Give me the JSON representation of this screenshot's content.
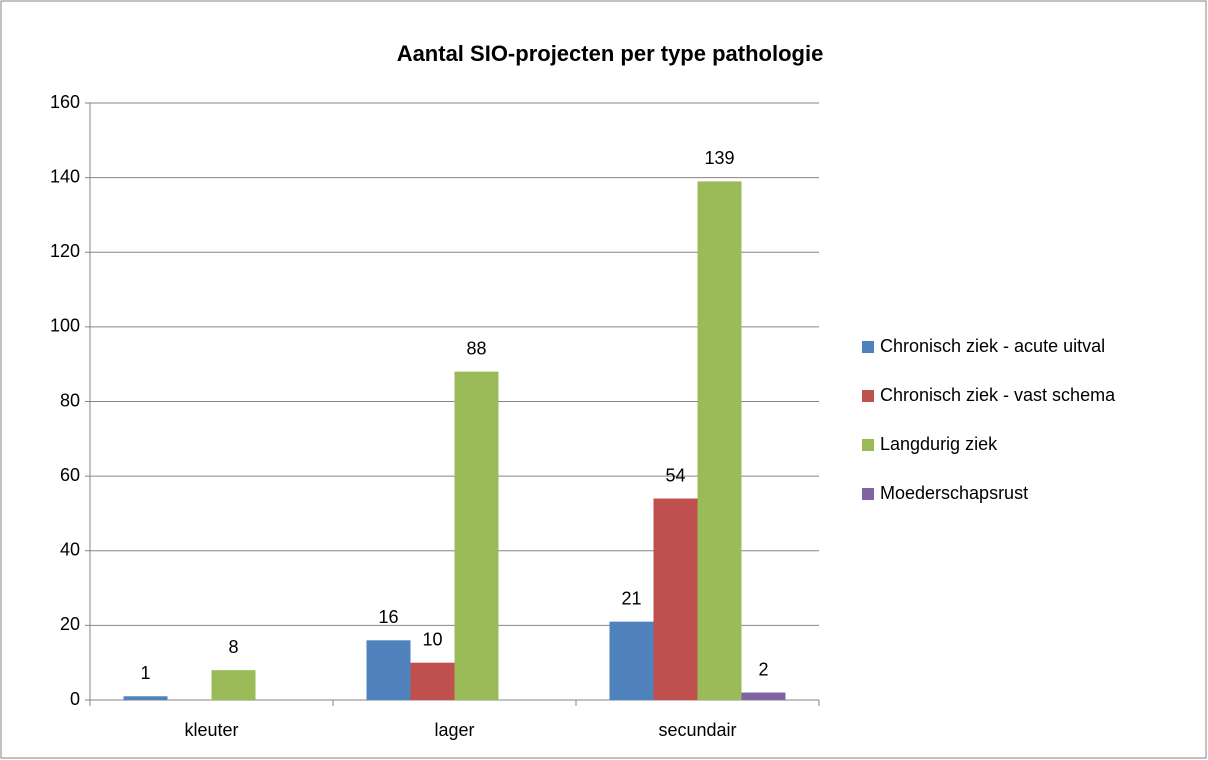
{
  "chart_data": {
    "type": "bar",
    "title": "Aantal SIO-projecten per type pathologie",
    "categories": [
      "kleuter",
      "lager",
      "secundair"
    ],
    "series": [
      {
        "name": "Chronisch ziek - acute uitval",
        "color": "#4f81bd",
        "values": [
          1,
          16,
          21
        ]
      },
      {
        "name": "Chronisch ziek - vast schema",
        "color": "#c0504d",
        "values": [
          null,
          10,
          54
        ]
      },
      {
        "name": "Langdurig ziek",
        "color": "#9bbb59",
        "values": [
          8,
          88,
          139
        ]
      },
      {
        "name": "Moederschapsrust",
        "color": "#8064a2",
        "values": [
          null,
          null,
          2
        ]
      }
    ],
    "ylim": [
      0,
      160
    ],
    "yticks": [
      0,
      20,
      40,
      60,
      80,
      100,
      120,
      140,
      160
    ],
    "grid": true,
    "legend": "right"
  }
}
